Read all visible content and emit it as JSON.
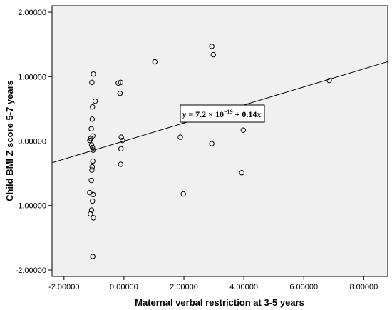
{
  "chart_data": {
    "type": "scatter",
    "title": "",
    "xlabel": "Maternal verbal restriction at 3-5 years",
    "ylabel": "Child BMI Z score 5-7 years",
    "xlim": [
      -2.4,
      8.8
    ],
    "ylim": [
      -2.1,
      2.1
    ],
    "x_ticks": [
      -2,
      0,
      2,
      4,
      6,
      8
    ],
    "x_tick_labels": [
      "-2.00000",
      "0.00000",
      "2.00000",
      "4.00000",
      "6.00000",
      "8.00000"
    ],
    "y_ticks": [
      -2,
      -1,
      0,
      1,
      2
    ],
    "y_tick_labels": [
      "-2.00000",
      "-1.00000",
      "0.00000",
      "1.00000",
      "2.00000"
    ],
    "grid": false,
    "background": "#f0f0f0",
    "fit_line": {
      "intercept": 0.0,
      "slope": 0.14
    },
    "equation": {
      "lhs": "y",
      "mid": " = 7.2 × 10",
      "exp": "−19",
      "rhs_a": " + 0.14",
      "rhs_b": "x"
    },
    "points": [
      {
        "x": -1.02,
        "y": 1.04
      },
      {
        "x": -1.07,
        "y": 0.91
      },
      {
        "x": -0.96,
        "y": 0.62
      },
      {
        "x": -1.05,
        "y": 0.53
      },
      {
        "x": -1.06,
        "y": 0.34
      },
      {
        "x": -1.09,
        "y": 0.19
      },
      {
        "x": -1.04,
        "y": 0.08
      },
      {
        "x": -1.11,
        "y": 0.04
      },
      {
        "x": -1.14,
        "y": 0.01
      },
      {
        "x": -1.08,
        "y": -0.06
      },
      {
        "x": -1.05,
        "y": -0.1
      },
      {
        "x": -1.03,
        "y": -0.14
      },
      {
        "x": -1.04,
        "y": -0.31
      },
      {
        "x": -1.06,
        "y": -0.4
      },
      {
        "x": -1.07,
        "y": -0.45
      },
      {
        "x": -1.09,
        "y": -0.61
      },
      {
        "x": -1.14,
        "y": -0.8
      },
      {
        "x": -1.03,
        "y": -0.83
      },
      {
        "x": -1.05,
        "y": -0.93
      },
      {
        "x": -1.08,
        "y": -1.07
      },
      {
        "x": -1.12,
        "y": -1.13
      },
      {
        "x": -1.02,
        "y": -1.19
      },
      {
        "x": -1.04,
        "y": -1.79
      },
      {
        "x": -0.19,
        "y": 0.9
      },
      {
        "x": -0.11,
        "y": 0.91
      },
      {
        "x": -0.13,
        "y": 0.74
      },
      {
        "x": -0.09,
        "y": 0.06
      },
      {
        "x": -0.05,
        "y": 0.01
      },
      {
        "x": -0.1,
        "y": -0.12
      },
      {
        "x": -0.11,
        "y": -0.36
      },
      {
        "x": 1.03,
        "y": 1.23
      },
      {
        "x": 1.88,
        "y": 0.06
      },
      {
        "x": 1.98,
        "y": -0.82
      },
      {
        "x": 2.93,
        "y": 1.47
      },
      {
        "x": 2.98,
        "y": 1.34
      },
      {
        "x": 2.93,
        "y": -0.04
      },
      {
        "x": 3.98,
        "y": 0.17
      },
      {
        "x": 3.93,
        "y": -0.49
      },
      {
        "x": 6.85,
        "y": 0.94
      }
    ]
  }
}
